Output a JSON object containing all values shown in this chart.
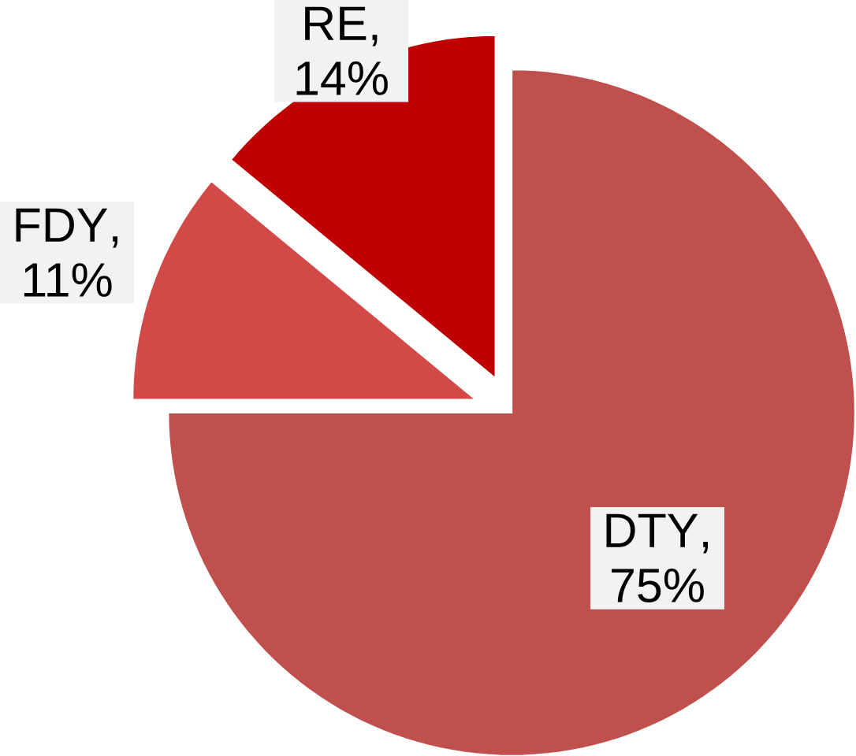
{
  "chart_data": {
    "type": "pie",
    "categories": [
      "DTY",
      "FDY",
      "RE"
    ],
    "values": [
      75,
      11,
      14
    ],
    "value_labels": [
      ", 75%",
      ", 11%",
      ", 14%"
    ],
    "colors": [
      "#c0504d",
      "#d24a47",
      "#c00000"
    ]
  }
}
